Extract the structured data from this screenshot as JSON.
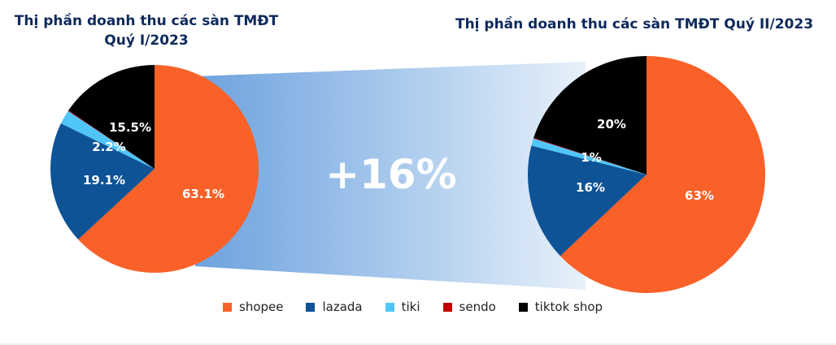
{
  "chart_data": [
    {
      "type": "pie",
      "title": "Thị phần doanh thu các sàn TMĐT Quý I/2023",
      "categories": [
        "shopee",
        "lazada",
        "tiki",
        "sendo",
        "tiktok shop"
      ],
      "values": [
        63.1,
        19.1,
        2.2,
        0.1,
        15.5
      ],
      "labels": [
        "63.1%",
        "19.1%",
        "2.2%",
        "",
        "15.5%"
      ]
    },
    {
      "type": "pie",
      "title": "Thị phần doanh thu các sàn TMĐT Quý II/2023",
      "categories": [
        "shopee",
        "lazada",
        "tiki",
        "sendo",
        "tiktok shop"
      ],
      "values": [
        63,
        16,
        1,
        0.1,
        20
      ],
      "labels": [
        "63%",
        "16%",
        "1%",
        "",
        "20%"
      ]
    }
  ],
  "titles": {
    "q1_line1": "Thị phần doanh thu các sàn TMĐT",
    "q1_line2": "Quý I/2023",
    "q2": "Thị phần doanh thu các sàn TMĐT Quý II/2023"
  },
  "growth_label": "+16%",
  "legend": [
    {
      "label": "shopee",
      "color": "#f96128"
    },
    {
      "label": "lazada",
      "color": "#0e5396"
    },
    {
      "label": "tiki",
      "color": "#4fc6f7"
    },
    {
      "label": "sendo",
      "color": "#c00000"
    },
    {
      "label": "tiktok shop",
      "color": "#000000"
    }
  ],
  "pie_labels": {
    "q1": {
      "shopee": "63.1%",
      "lazada": "19.1%",
      "tiki": "2.2%",
      "tiktok": "15.5%"
    },
    "q2": {
      "shopee": "63%",
      "lazada": "16%",
      "tiki": "1%",
      "tiktok": "20%"
    }
  }
}
